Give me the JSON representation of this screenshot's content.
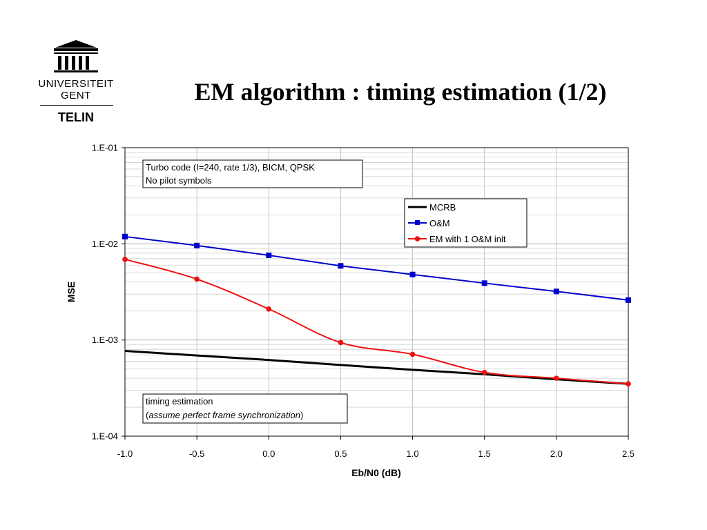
{
  "logo": {
    "line1": "UNIVERSITEIT",
    "line2": "GENT",
    "dept": "TELIN",
    "icon": "university-building-icon"
  },
  "slide": {
    "title": "EM algorithm : timing estimation (1/2)"
  },
  "chart_data": {
    "type": "line",
    "title": "",
    "xlabel": "Eb/N0 (dB)",
    "ylabel": "MSE",
    "x": [
      -1.0,
      -0.5,
      0.0,
      0.5,
      1.0,
      1.5,
      2.0,
      2.5
    ],
    "xticks": [
      "-1.0",
      "-0.5",
      "0.0",
      "0.5",
      "1.0",
      "1.5",
      "2.0",
      "2.5"
    ],
    "yticks": [
      "1.E-04",
      "1.E-03",
      "1.E-02",
      "1.E-01"
    ],
    "ytick_values": [
      0.0001,
      0.001,
      0.01,
      0.1
    ],
    "xlim": [
      -1.0,
      2.5
    ],
    "ylim": [
      0.0001,
      0.1
    ],
    "yscale": "log",
    "grid": true,
    "legend_position": "top-right",
    "series": [
      {
        "name": "MCRB",
        "color": "#000000",
        "marker": "none",
        "smooth": false,
        "values": [
          0.00077,
          0.00069,
          0.00062,
          0.00055,
          0.00049,
          0.00044,
          0.00039,
          0.00035
        ]
      },
      {
        "name": "O&M",
        "color": "#0000cc",
        "marker": "square",
        "smooth": false,
        "values": [
          0.0119,
          0.0096,
          0.0076,
          0.0059,
          0.0048,
          0.0039,
          0.0032,
          0.0026
        ]
      },
      {
        "name": "EM with 1 O&M init",
        "color": "#ee1111",
        "marker": "circle",
        "smooth": true,
        "values": [
          0.0069,
          0.0043,
          0.0021,
          0.00094,
          0.00071,
          0.00046,
          0.0004,
          0.00035
        ]
      }
    ],
    "annotations": [
      {
        "lines": [
          "Turbo code  (I=240, rate 1/3), BICM, QPSK",
          "No pilot symbols"
        ],
        "position": "top-left"
      },
      {
        "lines": [
          "timing estimation",
          "(assume perfect frame synchronization)"
        ],
        "italic_part": "assume perfect frame synchronization",
        "position": "bottom-left"
      }
    ]
  }
}
